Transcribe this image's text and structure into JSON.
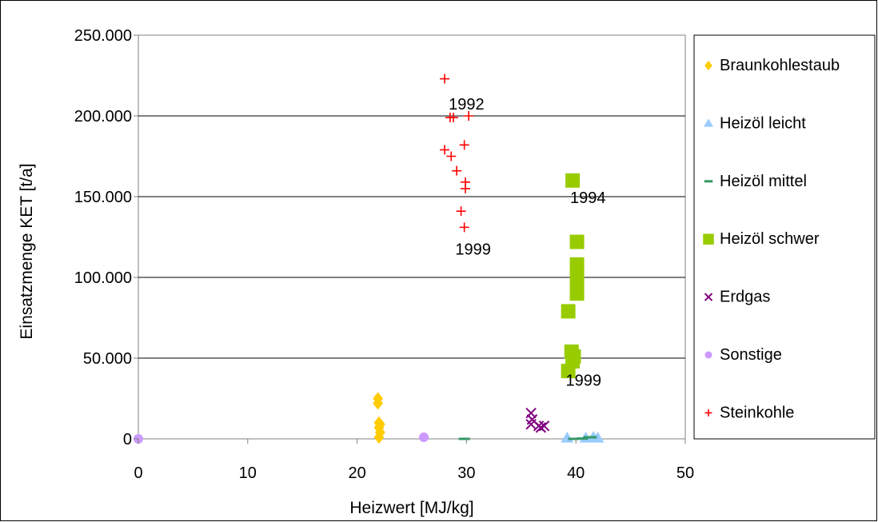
{
  "chart_data": {
    "type": "scatter",
    "xlabel": "Heizwert [MJ/kg]",
    "ylabel": "Einsatzmenge KET [t/a]",
    "xlim": [
      0,
      50
    ],
    "ylim": [
      0,
      250000
    ],
    "x_ticks": [
      "0",
      "10",
      "20",
      "30",
      "40",
      "50"
    ],
    "y_ticks": [
      "0",
      "50.000",
      "100.000",
      "150.000",
      "200.000",
      "250.000"
    ],
    "grid": "horizontal",
    "legend_position": "right",
    "series": [
      {
        "name": "Braunkohlestaub",
        "marker": "diamond",
        "color": "#FFCC00",
        "points": [
          [
            21.9,
            25000
          ],
          [
            21.9,
            22000
          ],
          [
            22.0,
            10000
          ],
          [
            22.1,
            9000
          ],
          [
            22.0,
            7000
          ],
          [
            22.1,
            4000
          ],
          [
            22.0,
            1000
          ]
        ]
      },
      {
        "name": "Heizöl leicht",
        "marker": "triangle",
        "color": "#99CCFF",
        "points": [
          [
            39.2,
            500
          ],
          [
            40.9,
            500
          ],
          [
            41.6,
            1000
          ],
          [
            42.0,
            500
          ]
        ]
      },
      {
        "name": "Heizöl mittel",
        "marker": "dash",
        "color": "#339966",
        "points": [
          [
            29.8,
            0
          ],
          [
            39.8,
            0
          ],
          [
            40.6,
            200
          ],
          [
            41.2,
            1000
          ],
          [
            41.4,
            1000
          ]
        ]
      },
      {
        "name": "Heizöl schwer",
        "marker": "square",
        "color": "#99CC00",
        "points": [
          [
            39.7,
            160000
          ],
          [
            40.1,
            122000
          ],
          [
            40.1,
            108000
          ],
          [
            40.1,
            103000
          ],
          [
            40.1,
            96000
          ],
          [
            40.1,
            90000
          ],
          [
            39.3,
            79000
          ],
          [
            39.6,
            54000
          ],
          [
            39.8,
            51000
          ],
          [
            39.7,
            48000
          ],
          [
            39.3,
            42000
          ]
        ]
      },
      {
        "name": "Erdgas",
        "marker": "x",
        "color": "#800080",
        "points": [
          [
            35.9,
            16000
          ],
          [
            36.0,
            12000
          ],
          [
            35.9,
            9000
          ],
          [
            36.6,
            8000
          ],
          [
            36.8,
            7000
          ],
          [
            37.1,
            8000
          ]
        ]
      },
      {
        "name": "Sonstige",
        "marker": "circle",
        "color": "#CC99FF",
        "points": [
          [
            0.0,
            0
          ],
          [
            26.1,
            1000
          ]
        ]
      },
      {
        "name": "Steinkohle",
        "marker": "plus",
        "color": "#FF0000",
        "points": [
          [
            28.0,
            223000
          ],
          [
            28.5,
            199000
          ],
          [
            28.8,
            199000
          ],
          [
            30.2,
            200000
          ],
          [
            28.0,
            179000
          ],
          [
            29.8,
            182000
          ],
          [
            28.6,
            175000
          ],
          [
            29.1,
            166000
          ],
          [
            29.9,
            159000
          ],
          [
            29.9,
            155000
          ],
          [
            29.5,
            141000
          ],
          [
            29.8,
            131000
          ]
        ]
      }
    ],
    "annotations": [
      {
        "text": "1992",
        "x": 30.0,
        "y": 204000
      },
      {
        "text": "1994",
        "x": 41.1,
        "y": 146000
      },
      {
        "text": "1999",
        "x": 30.6,
        "y": 114000
      },
      {
        "text": "1999",
        "x": 40.7,
        "y": 33000
      }
    ]
  }
}
